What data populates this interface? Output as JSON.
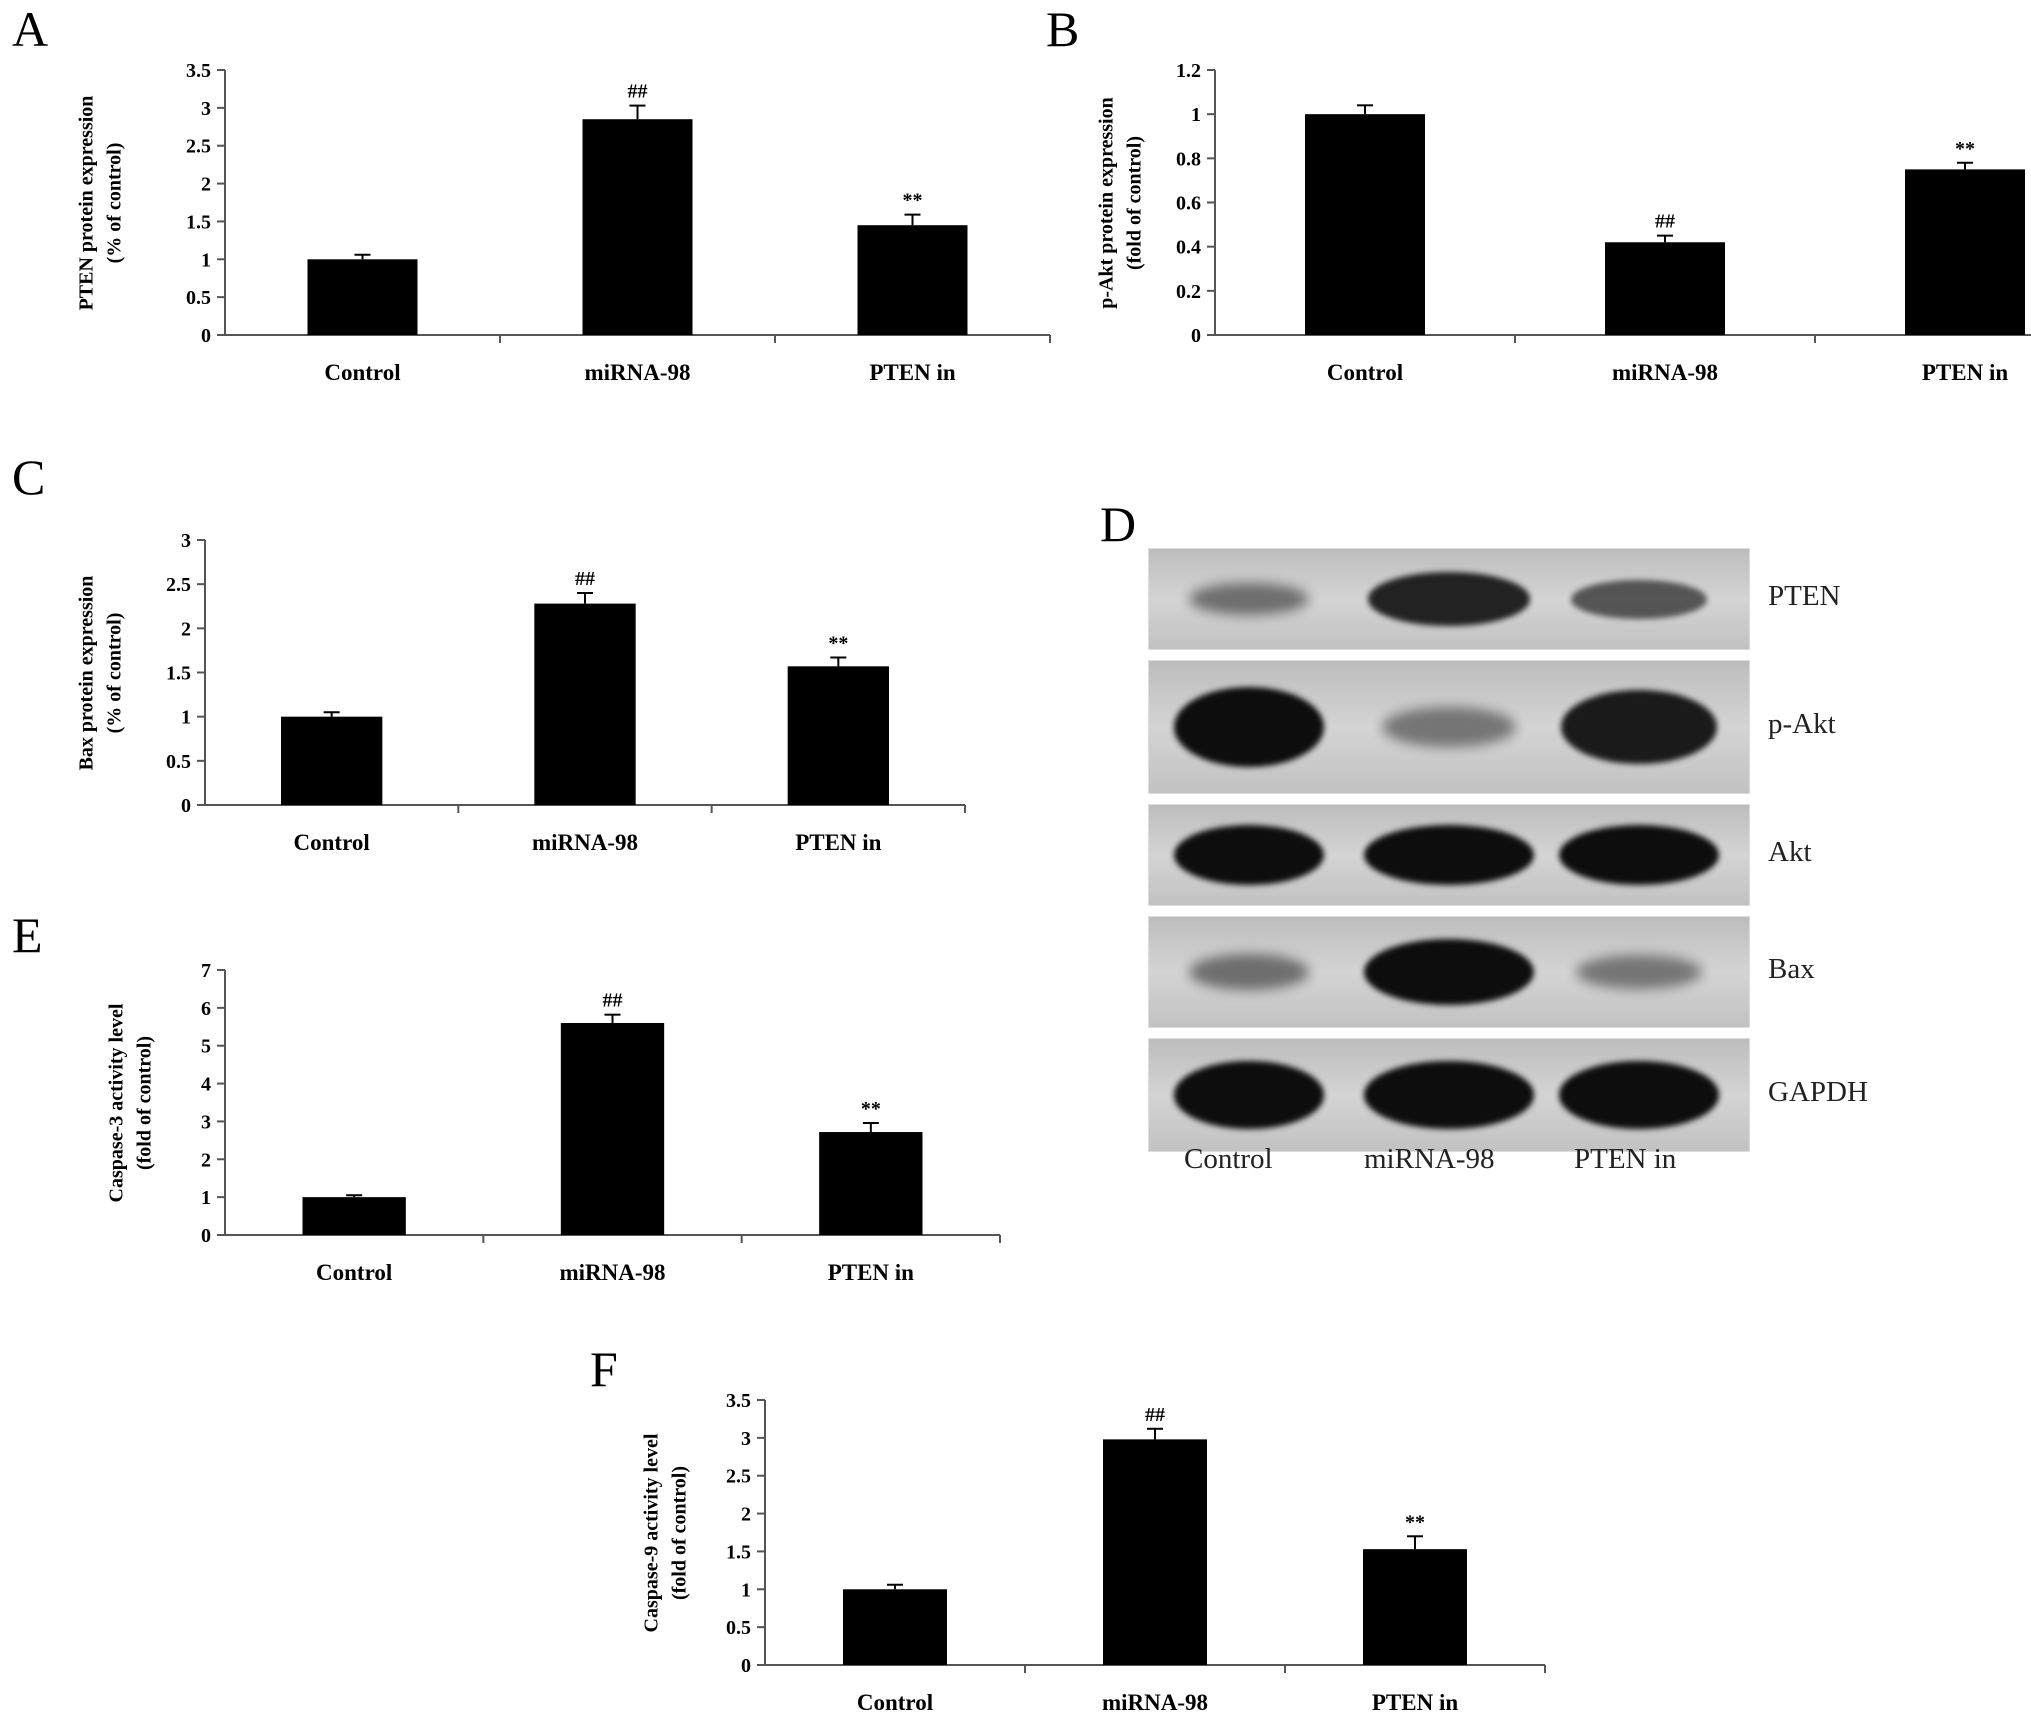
{
  "panels": {
    "A": "A",
    "B": "B",
    "C": "C",
    "D": "D",
    "E": "E",
    "F": "F"
  },
  "chart_data": [
    {
      "id": "A",
      "type": "bar",
      "categories": [
        "Control",
        "miRNA-98",
        "PTEN in"
      ],
      "values": [
        1.0,
        2.85,
        1.45
      ],
      "errors": [
        0.06,
        0.18,
        0.14
      ],
      "annotations": [
        "",
        "##",
        "**"
      ],
      "ylabel": [
        "PTEN protein expression",
        "(% of control)"
      ],
      "ylim": [
        0,
        3.5
      ],
      "yticks": [
        "0",
        "0.5",
        "1",
        "1.5",
        "2",
        "2.5",
        "3",
        "3.5"
      ],
      "ytick_values": [
        0,
        0.5,
        1,
        1.5,
        2,
        2.5,
        3,
        3.5
      ]
    },
    {
      "id": "B",
      "type": "bar",
      "categories": [
        "Control",
        "miRNA-98",
        "PTEN in"
      ],
      "values": [
        1.0,
        0.42,
        0.75
      ],
      "errors": [
        0.04,
        0.03,
        0.03
      ],
      "annotations": [
        "",
        "##",
        "**"
      ],
      "ylabel": [
        "p-Akt protein expression",
        "(fold of control)"
      ],
      "ylim": [
        0,
        1.2
      ],
      "yticks": [
        "0",
        "0.2",
        "0.4",
        "0.6",
        "0.8",
        "1",
        "1.2"
      ],
      "ytick_values": [
        0,
        0.2,
        0.4,
        0.6,
        0.8,
        1.0,
        1.2
      ]
    },
    {
      "id": "C",
      "type": "bar",
      "categories": [
        "Control",
        "miRNA-98",
        "PTEN in"
      ],
      "values": [
        1.0,
        2.28,
        1.57
      ],
      "errors": [
        0.05,
        0.12,
        0.1
      ],
      "annotations": [
        "",
        "##",
        "**"
      ],
      "ylabel": [
        "Bax protein expression",
        "(% of control)"
      ],
      "ylim": [
        0,
        3
      ],
      "yticks": [
        "0",
        "0.5",
        "1",
        "1.5",
        "2",
        "2.5",
        "3"
      ],
      "ytick_values": [
        0,
        0.5,
        1,
        1.5,
        2,
        2.5,
        3
      ]
    },
    {
      "id": "E",
      "type": "bar",
      "categories": [
        "Control",
        "miRNA-98",
        "PTEN in"
      ],
      "values": [
        1.0,
        5.6,
        2.72
      ],
      "errors": [
        0.05,
        0.22,
        0.24
      ],
      "annotations": [
        "",
        "##",
        "**"
      ],
      "ylabel": [
        "Caspase-3 activity level",
        "(fold of control)"
      ],
      "ylim": [
        0,
        7
      ],
      "yticks": [
        "0",
        "1",
        "2",
        "3",
        "4",
        "5",
        "6",
        "7"
      ],
      "ytick_values": [
        0,
        1,
        2,
        3,
        4,
        5,
        6,
        7
      ]
    },
    {
      "id": "F",
      "type": "bar",
      "categories": [
        "Control",
        "miRNA-98",
        "PTEN in"
      ],
      "values": [
        1.0,
        2.98,
        1.53
      ],
      "errors": [
        0.06,
        0.14,
        0.17
      ],
      "annotations": [
        "",
        "##",
        "**"
      ],
      "ylabel": [
        "Caspase-9 activity level",
        "(fold of control)"
      ],
      "ylim": [
        0,
        3.5
      ],
      "yticks": [
        "0",
        "0.5",
        "1",
        "1.5",
        "2",
        "2.5",
        "3",
        "3.5"
      ],
      "ytick_values": [
        0,
        0.5,
        1,
        1.5,
        2,
        2.5,
        3,
        3.5
      ]
    }
  ],
  "western_blot": {
    "proteins": [
      "PTEN",
      "p-Akt",
      "Akt",
      "Bax",
      "GAPDH"
    ],
    "lanes": [
      "Control",
      "miRNA-98",
      "PTEN in"
    ],
    "band_intensity": [
      [
        0.35,
        0.85,
        0.5
      ],
      [
        1.0,
        0.3,
        0.9
      ],
      [
        1.0,
        1.0,
        1.0
      ],
      [
        0.35,
        1.0,
        0.3
      ],
      [
        1.0,
        1.0,
        1.0
      ]
    ]
  },
  "colors": {
    "bar": "#000000",
    "axis": "#555555",
    "blot_bg": "#c9c9c9",
    "band": "#0d0d0d"
  }
}
